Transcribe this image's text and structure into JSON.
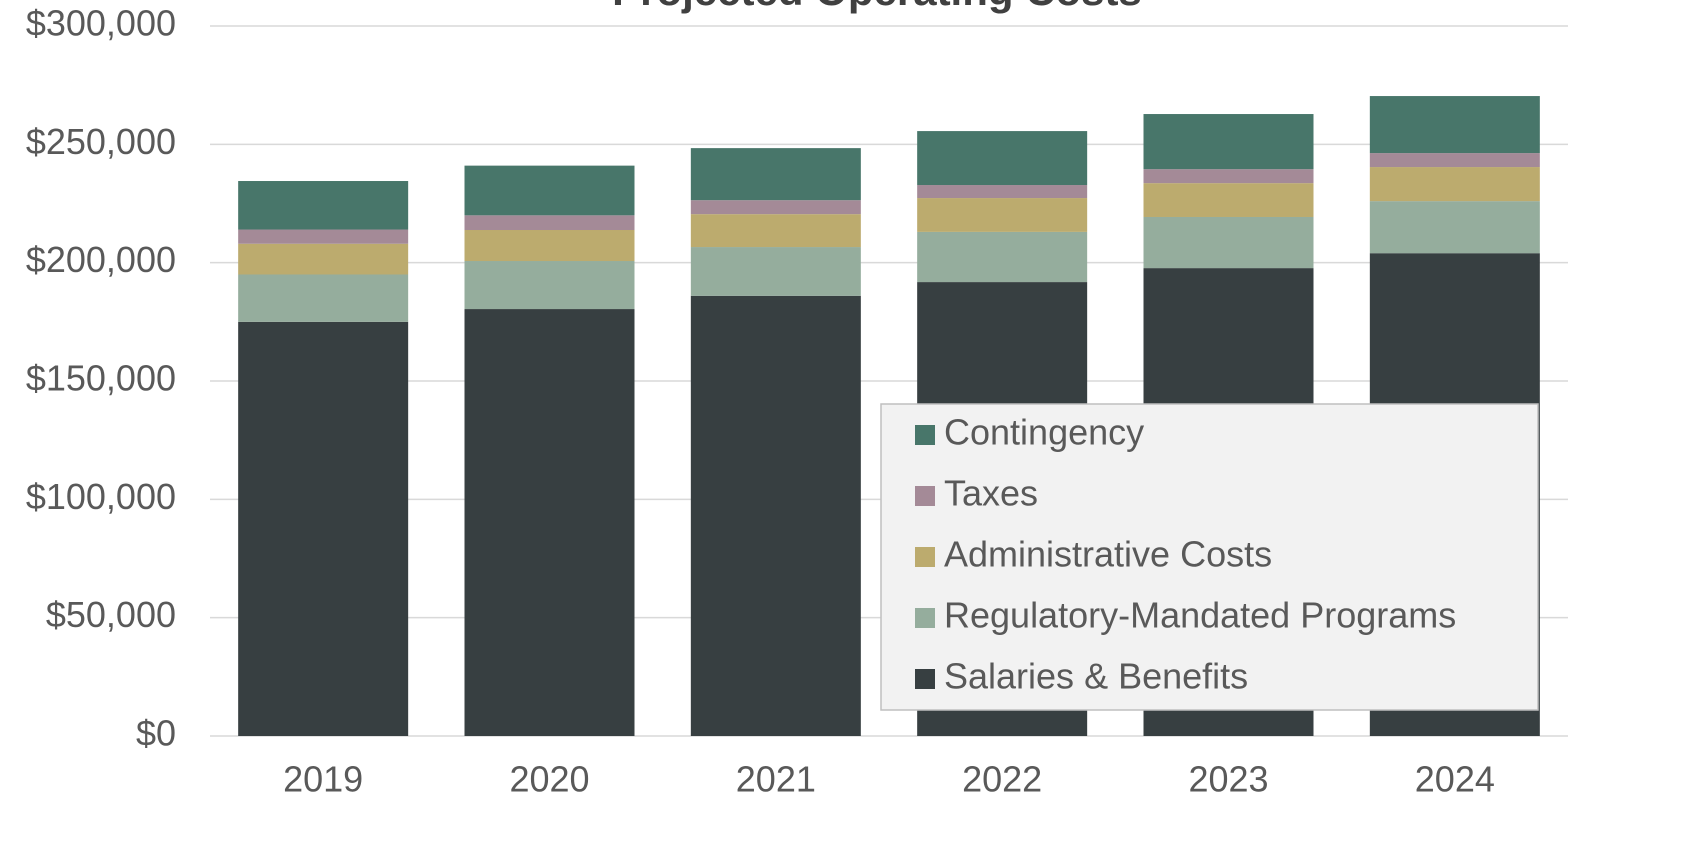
{
  "chart_data": {
    "type": "stacked_bar",
    "title": "Projected Operating Costs",
    "categories": [
      "2019",
      "2020",
      "2021",
      "2022",
      "2023",
      "2024"
    ],
    "series": [
      {
        "name": "Salaries & Benefits",
        "color": "#373f41",
        "values": [
          175000,
          180400,
          186000,
          191800,
          197700,
          204000
        ]
      },
      {
        "name": "Regulatory-Mandated Programs",
        "color": "#95ad9d",
        "values": [
          20000,
          20300,
          20600,
          21200,
          21600,
          22000
        ]
      },
      {
        "name": "Administrative Costs",
        "color": "#bcab6e",
        "values": [
          13000,
          13100,
          13900,
          14300,
          14300,
          14400
        ]
      },
      {
        "name": "Taxes",
        "color": "#a48a97",
        "values": [
          6000,
          6200,
          5900,
          5500,
          5900,
          5900
        ]
      },
      {
        "name": "Contingency",
        "color": "#48766a",
        "values": [
          20500,
          21000,
          22000,
          22800,
          23300,
          24100
        ]
      }
    ],
    "ylim": [
      0,
      300000
    ],
    "yticks": [
      {
        "value": 0,
        "label": "$0"
      },
      {
        "value": 50000,
        "label": "$50,000"
      },
      {
        "value": 100000,
        "label": "$100,000"
      },
      {
        "value": 150000,
        "label": "$150,000"
      },
      {
        "value": 200000,
        "label": "$200,000"
      },
      {
        "value": 250000,
        "label": "$250,000"
      },
      {
        "value": 300000,
        "label": "$300,000"
      }
    ],
    "grid": true,
    "legend": "lower right"
  }
}
